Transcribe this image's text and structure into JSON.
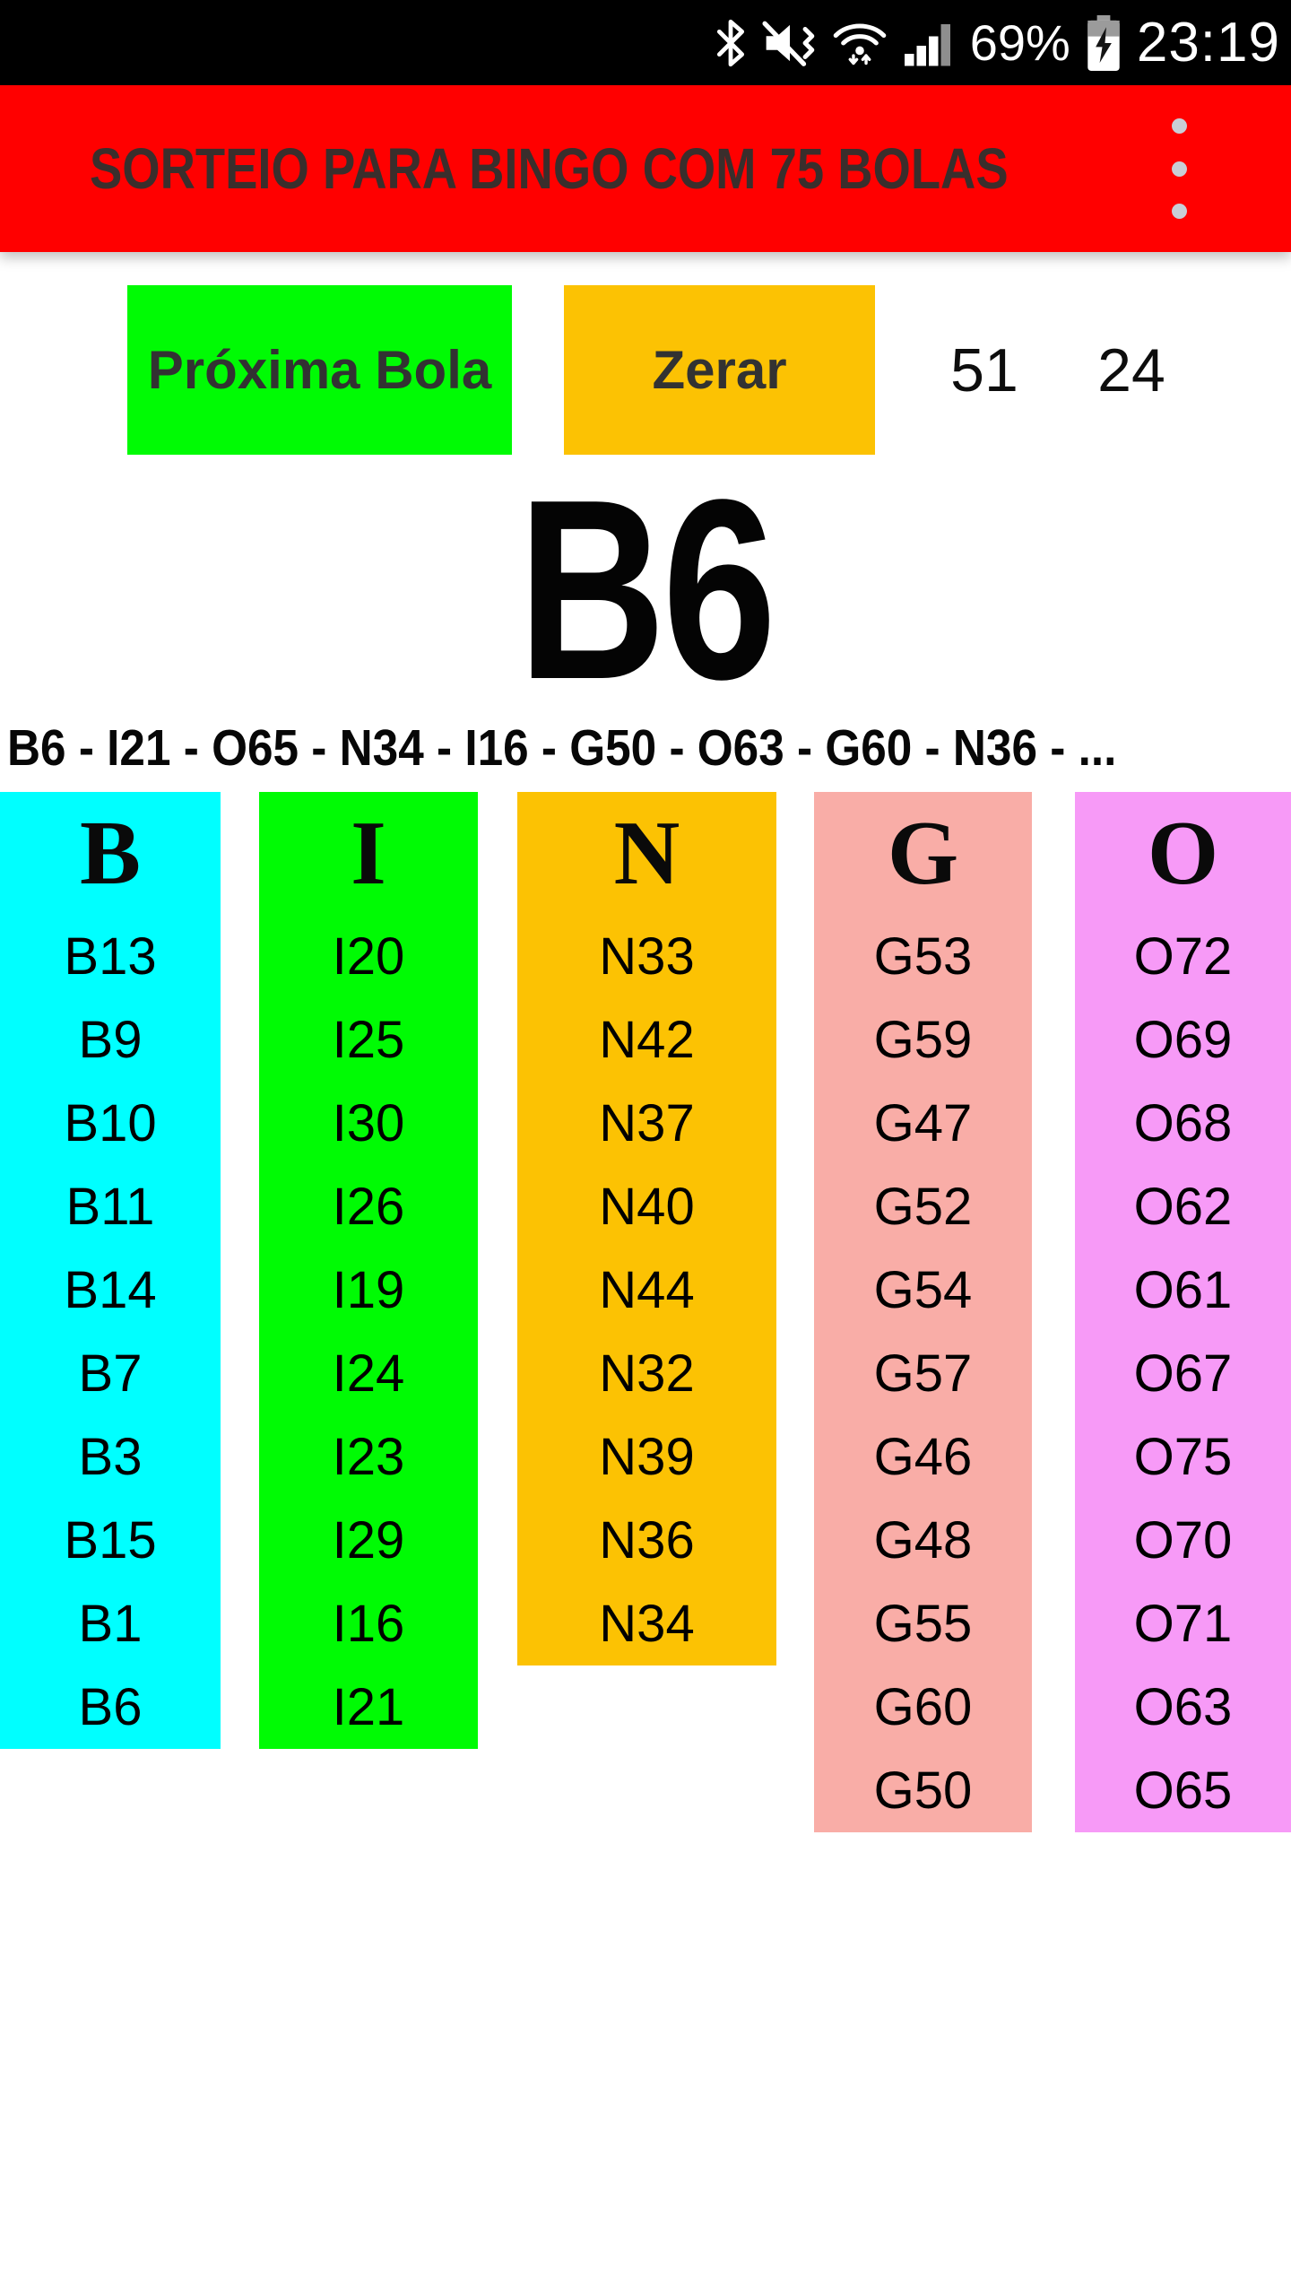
{
  "status_bar": {
    "time": "23:19",
    "battery_percent": "69%",
    "background": "#000000",
    "foreground": "#FFFFFF",
    "icons": [
      "bluetooth-icon",
      "mute-vibrate-icon",
      "wifi-icon",
      "signal-icon",
      "battery-charging-icon"
    ]
  },
  "app_bar": {
    "title": "SORTEIO PARA BINGO COM 75 BOLAS",
    "background": "#FF0000",
    "title_color": "#3A2E2C",
    "menu_icon": "overflow-menu-icon",
    "menu_dot_color": "#C9CED6"
  },
  "controls": {
    "next_ball_label": "Próxima Bola",
    "reset_label": "Zerar",
    "drawn_count": "51",
    "remaining_count": "24",
    "next_ball_color": "#00FB04",
    "reset_color": "#FCC203",
    "button_text_color": "#323232"
  },
  "current_ball": "B6",
  "history_line": "B6 - I21 - O65 - N34 - I16 - G50 - O63 - G60 - N36 - ...",
  "board": {
    "columns": [
      {
        "letter": "B",
        "color": "#00FFFF",
        "values": [
          "B13",
          "B9",
          "B10",
          "B11",
          "B14",
          "B7",
          "B3",
          "B15",
          "B1",
          "B6"
        ]
      },
      {
        "letter": "I",
        "color": "#00FB04",
        "values": [
          "I20",
          "I25",
          "I30",
          "I26",
          "I19",
          "I24",
          "I23",
          "I29",
          "I16",
          "I21"
        ]
      },
      {
        "letter": "N",
        "color": "#FCC203",
        "values": [
          "N33",
          "N42",
          "N37",
          "N40",
          "N44",
          "N32",
          "N39",
          "N36",
          "N34"
        ]
      },
      {
        "letter": "G",
        "color": "#F9ADA7",
        "values": [
          "G53",
          "G59",
          "G47",
          "G52",
          "G54",
          "G57",
          "G46",
          "G48",
          "G55",
          "G60",
          "G50"
        ]
      },
      {
        "letter": "O",
        "color": "#F79AF7",
        "values": [
          "O72",
          "O69",
          "O68",
          "O62",
          "O61",
          "O67",
          "O75",
          "O70",
          "O71",
          "O63",
          "O65"
        ]
      }
    ]
  }
}
